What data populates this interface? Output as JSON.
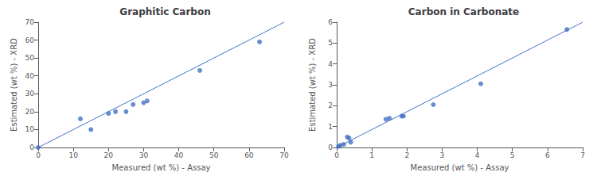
{
  "chart_data": [
    {
      "type": "scatter",
      "title": "Graphitic Carbon",
      "xlabel": "Measured (wt %) - Assay",
      "ylabel": "Estimated (wt %) - XRD",
      "xlim": [
        0,
        70
      ],
      "ylim": [
        0,
        70
      ],
      "xticks": [
        0,
        10,
        20,
        30,
        40,
        50,
        60,
        70
      ],
      "yticks": [
        0,
        10,
        20,
        30,
        40,
        50,
        60,
        70
      ],
      "grid": false,
      "series": [
        {
          "type": "line",
          "color": "#4472c4",
          "x": [
            0,
            70
          ],
          "values": [
            0,
            70
          ]
        },
        {
          "type": "scatter",
          "color": "#4472c4",
          "x": [
            0,
            12,
            15,
            20,
            22,
            25,
            27,
            30,
            31,
            46,
            63
          ],
          "values": [
            0,
            16,
            10,
            19,
            20,
            20,
            24,
            25,
            26,
            43,
            59
          ]
        }
      ]
    },
    {
      "type": "scatter",
      "title": "Carbon in Carbonate",
      "xlabel": "Measured (wt %) - Assay",
      "ylabel": "Estimated (wt %) - XRD",
      "xlim": [
        0,
        7
      ],
      "ylim": [
        0,
        6
      ],
      "xticks": [
        0,
        1,
        2,
        3,
        4,
        5,
        6,
        7
      ],
      "yticks": [
        0,
        1,
        2,
        3,
        4,
        5,
        6
      ],
      "grid": false,
      "series": [
        {
          "type": "line",
          "color": "#4472c4",
          "x": [
            0,
            7
          ],
          "values": [
            0,
            6
          ]
        },
        {
          "type": "scatter",
          "color": "#4472c4",
          "x": [
            0.05,
            0.1,
            0.2,
            0.3,
            0.35,
            0.4,
            1.4,
            1.5,
            1.85,
            1.9,
            2.75,
            4.1,
            6.55
          ],
          "values": [
            0.05,
            0.1,
            0.15,
            0.5,
            0.45,
            0.25,
            1.35,
            1.4,
            1.5,
            1.5,
            2.05,
            3.05,
            5.65
          ]
        }
      ]
    }
  ]
}
